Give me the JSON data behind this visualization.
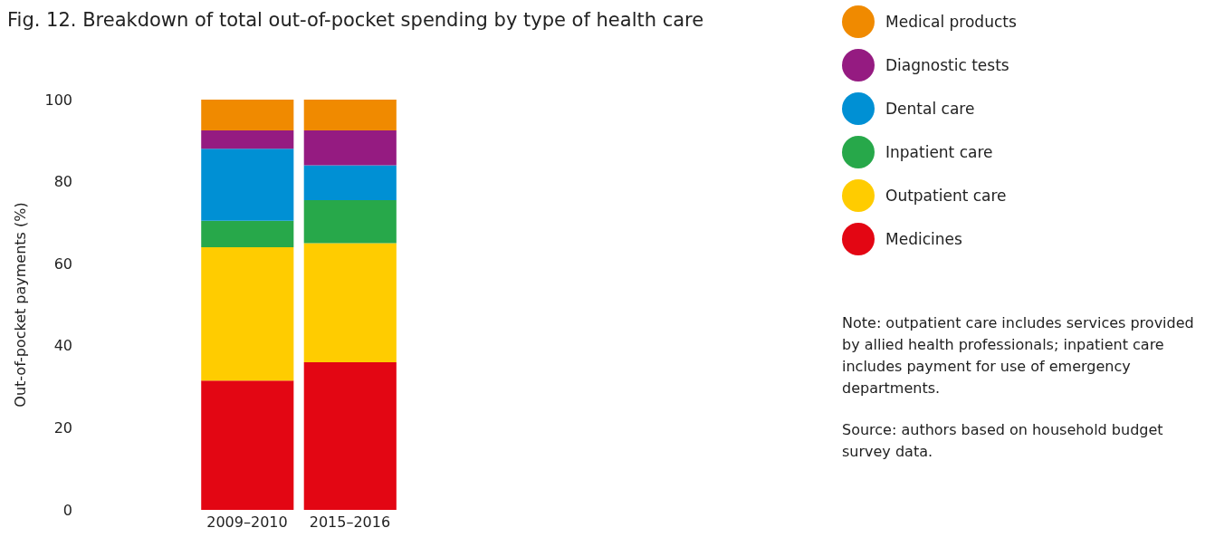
{
  "chart_data": {
    "type": "bar",
    "title": "Fig. 12. Breakdown of total out-of-pocket spending by type of health care",
    "ylabel": "Out-of-pocket payments (%)",
    "categories": [
      "2009–2010",
      "2015–2016"
    ],
    "stacked": true,
    "ylim": [
      0,
      100
    ],
    "yticks": [
      0,
      20,
      40,
      60,
      80,
      100
    ],
    "legend": "top right",
    "series": [
      {
        "name": "Medicines",
        "color": "#e30613",
        "values": [
          31.5,
          36
        ]
      },
      {
        "name": "Outpatient care",
        "color": "#ffcc00",
        "values": [
          32.5,
          29
        ]
      },
      {
        "name": "Inpatient care",
        "color": "#27a84a",
        "values": [
          6.5,
          10.5
        ]
      },
      {
        "name": "Dental care",
        "color": "#0090d4",
        "values": [
          17.5,
          8.5
        ]
      },
      {
        "name": "Diagnostic tests",
        "color": "#951b81",
        "values": [
          4.5,
          8.5
        ]
      },
      {
        "name": "Medical products",
        "color": "#f08a00",
        "values": [
          7.5,
          7.5
        ]
      }
    ],
    "annotations": [
      "Note: outpatient care includes services provided by allied health professionals; inpatient care includes payment for use of emergency departments.",
      "Source: authors based on household budget survey data."
    ]
  }
}
